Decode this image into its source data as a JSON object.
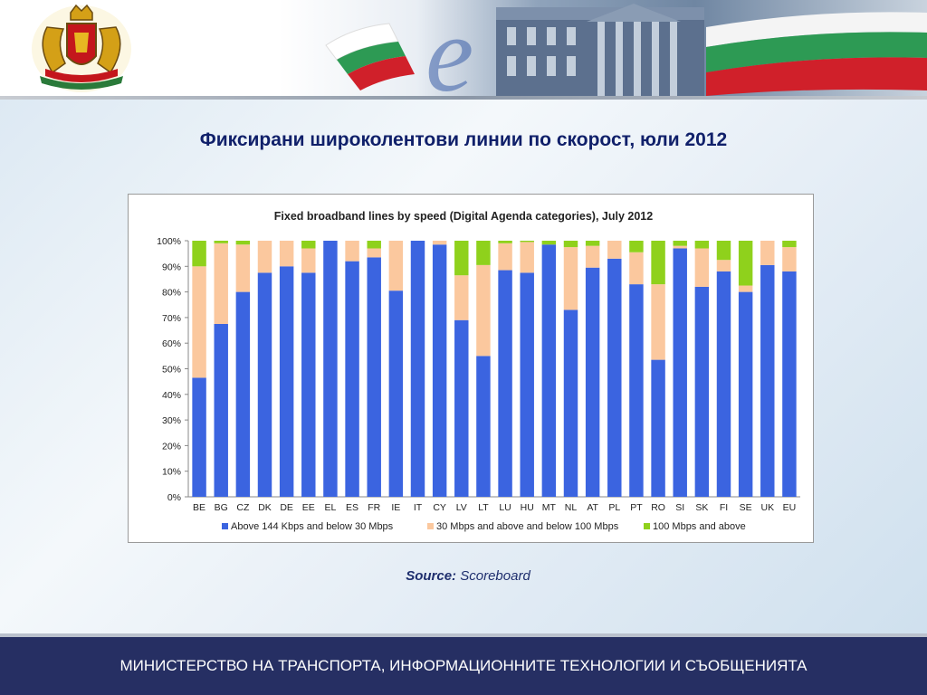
{
  "slide": {
    "title": "Фиксирани широколентови линии по скорост, юли 2012",
    "source_label": "Source:",
    "source_value": "Scoreboard",
    "footer": "МИНИСТЕРСТВО НА ТРАНСПОРТА, ИНФОРМАЦИОННИТЕ ТЕХНОЛОГИИ И СЪОБЩЕНИЯТА"
  },
  "chart_data": {
    "type": "bar",
    "stacked": true,
    "title": "Fixed broadband lines by speed (Digital Agenda categories), July 2012",
    "categories": [
      "BE",
      "BG",
      "CZ",
      "DK",
      "DE",
      "EE",
      "EL",
      "ES",
      "FR",
      "IE",
      "IT",
      "CY",
      "LV",
      "LT",
      "LU",
      "HU",
      "MT",
      "NL",
      "AT",
      "PL",
      "PT",
      "RO",
      "SI",
      "SK",
      "FI",
      "SE",
      "UK",
      "EU"
    ],
    "series": [
      {
        "name": "Above 144 Kbps and below 30 Mbps",
        "color": "#3b64e0",
        "values": [
          46.5,
          67.5,
          80,
          87.5,
          90,
          87.5,
          100,
          92,
          93.5,
          80.5,
          100,
          98.5,
          69,
          55,
          88.5,
          87.5,
          98.5,
          73,
          89.5,
          93,
          83,
          53.5,
          97,
          82,
          88,
          80,
          90.5,
          88
        ]
      },
      {
        "name": "30 Mbps and above and below 100 Mbps",
        "color": "#fbc89e",
        "values": [
          43.5,
          31.5,
          18.5,
          12.5,
          10,
          9.5,
          0,
          8,
          3.5,
          19.5,
          0,
          1.5,
          17.5,
          35.5,
          10.5,
          12,
          0,
          24.5,
          8.5,
          7,
          12.5,
          29.5,
          1,
          15,
          4.5,
          2.5,
          9.5,
          9.5
        ]
      },
      {
        "name": "100 Mbps and above",
        "color": "#8fd11c",
        "values": [
          10,
          1,
          1.5,
          0,
          0,
          3,
          0,
          0,
          3,
          0,
          0,
          0,
          13.5,
          9.5,
          1,
          0.5,
          1.5,
          2.5,
          2,
          0,
          4.5,
          17,
          2,
          3,
          7.5,
          17.5,
          0,
          2.5
        ]
      }
    ],
    "ylim": [
      0,
      100
    ],
    "yticks": [
      "0%",
      "10%",
      "20%",
      "30%",
      "40%",
      "50%",
      "60%",
      "70%",
      "80%",
      "90%",
      "100%"
    ],
    "grid": false,
    "legend": "bottom"
  }
}
